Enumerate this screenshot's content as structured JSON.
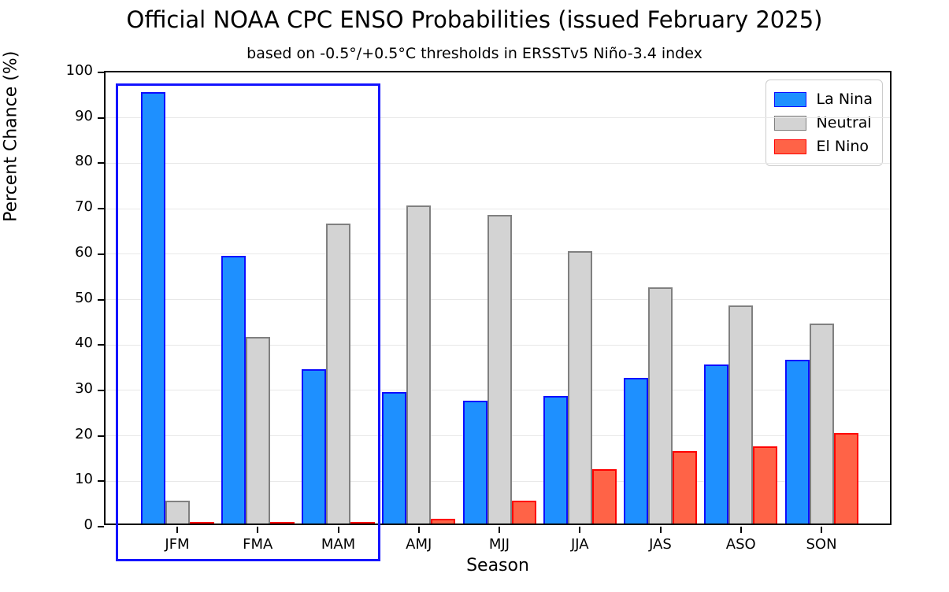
{
  "chart_data": {
    "type": "bar",
    "title": "Official NOAA CPC ENSO Probabilities (issued February 2025)",
    "subtitle": "based on -0.5°/+0.5°C thresholds in ERSSTv5 Niño-3.4 index",
    "xlabel": "Season",
    "ylabel": "Percent Chance (%)",
    "categories": [
      "JFM",
      "FMA",
      "MAM",
      "AMJ",
      "MJJ",
      "JJA",
      "JAS",
      "ASO",
      "SON"
    ],
    "series": [
      {
        "name": "La Nina",
        "fill": "#1e90ff",
        "edge": "#0d0dff",
        "values": [
          95,
          59,
          34,
          29,
          27,
          28,
          32,
          35,
          36
        ]
      },
      {
        "name": "Neutral",
        "fill": "#d3d3d3",
        "edge": "#808080",
        "values": [
          5,
          41,
          66,
          70,
          68,
          60,
          52,
          48,
          44
        ]
      },
      {
        "name": "El Nino",
        "fill": "#ff6347",
        "edge": "#ff0000",
        "values": [
          0,
          0,
          0,
          1,
          5,
          12,
          16,
          17,
          20
        ]
      }
    ],
    "ylim": [
      0,
      100
    ],
    "ytick_step": 10,
    "grid": "horizontal",
    "legend_position": "top-right",
    "annotation": {
      "type": "highlight-box",
      "covers": [
        "JFM",
        "FMA",
        "MAM"
      ],
      "color": "#1414ff"
    }
  },
  "colors": {
    "background": "#ffffff",
    "axis": "#000000",
    "gridline": "#e8e8e8",
    "legend_border": "#cccccc"
  }
}
